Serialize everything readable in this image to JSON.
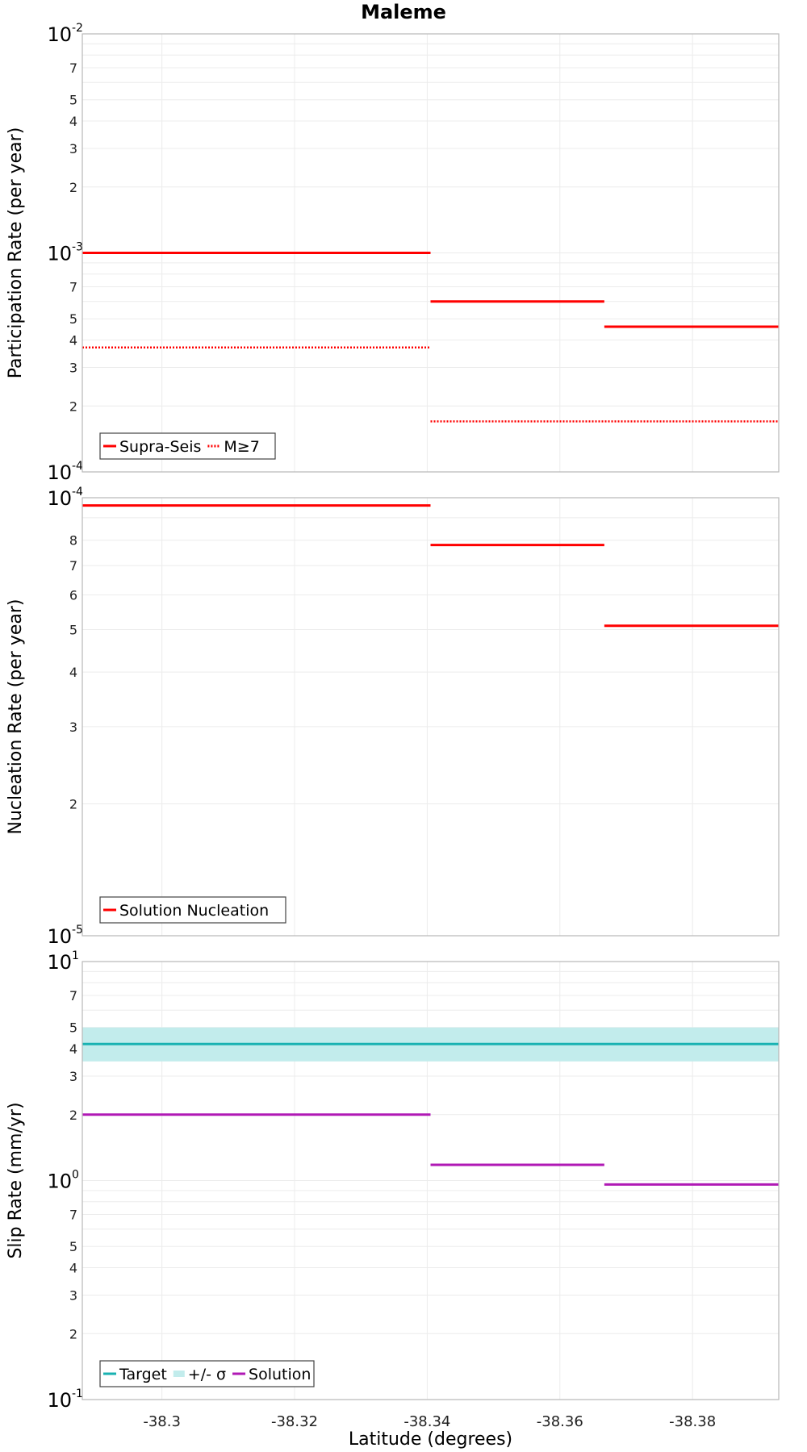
{
  "chart_data": [
    {
      "type": "line",
      "title": "Maleme",
      "ylabel": "Participation Rate (per year)",
      "xlabel": "",
      "yscale": "log",
      "ylim": [
        0.0001,
        0.01
      ],
      "xlim": [
        -38.288,
        -38.393
      ],
      "x_ticks": [
        -38.3,
        -38.32,
        -38.34,
        -38.36,
        -38.38
      ],
      "y_major_ticks": [
        {
          "base": "10",
          "exp": "-4"
        },
        {
          "base": "10",
          "exp": "-3"
        },
        {
          "base": "10",
          "exp": "-2"
        }
      ],
      "y_minor_ticks": [
        "2",
        "3",
        "4",
        "5",
        "7"
      ],
      "grid": true,
      "legend": {
        "position": "bottom-left"
      },
      "series": [
        {
          "name": "Supra-Seis",
          "style": "solid",
          "color": "#ff0000",
          "segments": [
            {
              "x": [
                -38.288,
                -38.3405
              ],
              "y": 0.001
            },
            {
              "x": [
                -38.3405,
                -38.3667
              ],
              "y": 0.0006
            },
            {
              "x": [
                -38.3667,
                -38.393
              ],
              "y": 0.00046
            }
          ]
        },
        {
          "name": "M≥7",
          "style": "dotted",
          "color": "#ff0000",
          "segments": [
            {
              "x": [
                -38.288,
                -38.3405
              ],
              "y": 0.00037
            },
            {
              "x": [
                -38.3405,
                -38.393
              ],
              "y": 0.00017
            }
          ]
        }
      ]
    },
    {
      "type": "line",
      "title": "",
      "ylabel": "Nucleation Rate (per year)",
      "xlabel": "",
      "yscale": "log",
      "ylim": [
        1e-05,
        0.0001
      ],
      "xlim": [
        -38.288,
        -38.393
      ],
      "x_ticks": [
        -38.3,
        -38.32,
        -38.34,
        -38.36,
        -38.38
      ],
      "y_major_ticks": [
        {
          "base": "10",
          "exp": "-5"
        },
        {
          "base": "10",
          "exp": "-4"
        }
      ],
      "y_minor_ticks": [
        "2",
        "3",
        "4",
        "5",
        "6",
        "7",
        "8"
      ],
      "grid": true,
      "legend": {
        "position": "bottom-left"
      },
      "series": [
        {
          "name": "Solution Nucleation",
          "style": "solid",
          "color": "#ff0000",
          "segments": [
            {
              "x": [
                -38.288,
                -38.3405
              ],
              "y": 9.6e-05
            },
            {
              "x": [
                -38.3405,
                -38.3667
              ],
              "y": 7.8e-05
            },
            {
              "x": [
                -38.3667,
                -38.393
              ],
              "y": 5.1e-05
            }
          ]
        }
      ]
    },
    {
      "type": "line",
      "title": "",
      "ylabel": "Slip Rate (mm/yr)",
      "xlabel": "Latitude (degrees)",
      "yscale": "log",
      "ylim": [
        0.1,
        10
      ],
      "xlim": [
        -38.288,
        -38.393
      ],
      "x_ticks": [
        -38.3,
        -38.32,
        -38.34,
        -38.36,
        -38.38
      ],
      "x_tick_labels": [
        "-38.3",
        "-38.32",
        "-38.34",
        "-38.36",
        "-38.38"
      ],
      "y_major_ticks": [
        {
          "base": "10",
          "exp": "-1"
        },
        {
          "base": "10",
          "exp": "0"
        },
        {
          "base": "10",
          "exp": "1"
        }
      ],
      "y_minor_ticks": [
        "2",
        "3",
        "4",
        "5",
        "7"
      ],
      "grid": true,
      "legend": {
        "position": "bottom-left"
      },
      "series": [
        {
          "name": "Target",
          "style": "solid",
          "color": "#19b2b2",
          "segments": [
            {
              "x": [
                -38.288,
                -38.393
              ],
              "y": 4.2
            }
          ]
        },
        {
          "name": "+/- σ",
          "style": "band",
          "color": "#c2ecec",
          "band": {
            "low": 3.5,
            "high": 5.0
          }
        },
        {
          "name": "Solution",
          "style": "solid",
          "color": "#b019b5",
          "segments": [
            {
              "x": [
                -38.288,
                -38.3405
              ],
              "y": 2.0
            },
            {
              "x": [
                -38.3405,
                -38.3667
              ],
              "y": 1.18
            },
            {
              "x": [
                -38.3667,
                -38.393
              ],
              "y": 0.96
            }
          ]
        }
      ]
    }
  ]
}
